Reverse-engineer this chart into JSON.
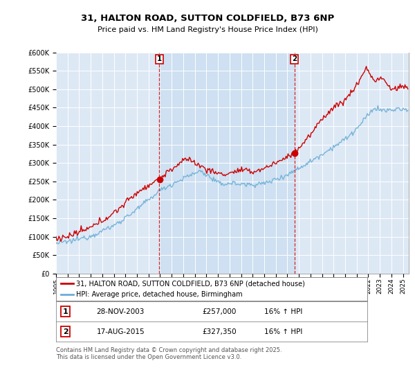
{
  "title_line1": "31, HALTON ROAD, SUTTON COLDFIELD, B73 6NP",
  "title_line2": "Price paid vs. HM Land Registry's House Price Index (HPI)",
  "ytick_values": [
    0,
    50000,
    100000,
    150000,
    200000,
    250000,
    300000,
    350000,
    400000,
    450000,
    500000,
    550000,
    600000
  ],
  "year_start": 1995,
  "year_end": 2025,
  "marker1_year": 2003.92,
  "marker2_year": 2015.62,
  "marker1_label": "1",
  "marker2_label": "2",
  "sale1_date": "28-NOV-2003",
  "sale1_price": "£257,000",
  "sale1_hpi": "16% ↑ HPI",
  "sale2_date": "17-AUG-2015",
  "sale2_price": "£327,350",
  "sale2_hpi": "16% ↑ HPI",
  "legend1_label": "31, HALTON ROAD, SUTTON COLDFIELD, B73 6NP (detached house)",
  "legend2_label": "HPI: Average price, detached house, Birmingham",
  "footer": "Contains HM Land Registry data © Crown copyright and database right 2025.\nThis data is licensed under the Open Government Licence v3.0.",
  "red_color": "#cc0000",
  "blue_color": "#6baed6",
  "marker_color": "#cc0000",
  "background_color": "#ffffff",
  "plot_bg_color": "#dde8f5",
  "shade_color": "#c8ddf0"
}
